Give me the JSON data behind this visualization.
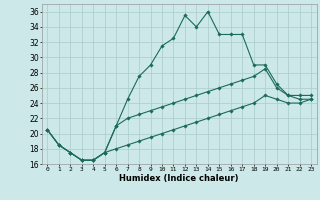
{
  "xlabel": "Humidex (Indice chaleur)",
  "xlim": [
    -0.5,
    23.5
  ],
  "ylim": [
    16,
    37
  ],
  "yticks": [
    16,
    18,
    20,
    22,
    24,
    26,
    28,
    30,
    32,
    34,
    36
  ],
  "xticks": [
    0,
    1,
    2,
    3,
    4,
    5,
    6,
    7,
    8,
    9,
    10,
    11,
    12,
    13,
    14,
    15,
    16,
    17,
    18,
    19,
    20,
    21,
    22,
    23
  ],
  "background_color": "#cde8e8",
  "grid_color": "#aacccc",
  "line_color": "#1a6b5a",
  "series1_x": [
    0,
    1,
    2,
    3,
    4,
    5,
    6,
    7,
    8,
    9,
    10,
    11,
    12,
    13,
    14,
    15,
    16,
    17,
    18,
    19,
    20,
    21,
    22,
    23
  ],
  "series1_y": [
    20.5,
    18.5,
    17.5,
    16.5,
    16.5,
    17.5,
    21.0,
    24.5,
    27.5,
    29.0,
    31.5,
    32.5,
    35.5,
    34.0,
    36.0,
    33.0,
    33.0,
    33.0,
    29.0,
    29.0,
    26.5,
    25.0,
    25.0,
    25.0
  ],
  "series2_x": [
    0,
    1,
    2,
    3,
    4,
    5,
    6,
    7,
    8,
    9,
    10,
    11,
    12,
    13,
    14,
    15,
    16,
    17,
    18,
    19,
    20,
    21,
    22,
    23
  ],
  "series2_y": [
    20.5,
    18.5,
    17.5,
    16.5,
    16.5,
    17.5,
    21.0,
    22.0,
    22.5,
    23.0,
    23.5,
    24.0,
    24.5,
    25.0,
    25.5,
    26.0,
    26.5,
    27.0,
    27.5,
    28.5,
    26.0,
    25.0,
    24.5,
    24.5
  ],
  "series3_x": [
    0,
    1,
    2,
    3,
    4,
    5,
    6,
    7,
    8,
    9,
    10,
    11,
    12,
    13,
    14,
    15,
    16,
    17,
    18,
    19,
    20,
    21,
    22,
    23
  ],
  "series3_y": [
    20.5,
    18.5,
    17.5,
    16.5,
    16.5,
    17.5,
    18.0,
    18.5,
    19.0,
    19.5,
    20.0,
    20.5,
    21.0,
    21.5,
    22.0,
    22.5,
    23.0,
    23.5,
    24.0,
    25.0,
    24.5,
    24.0,
    24.0,
    24.5
  ]
}
